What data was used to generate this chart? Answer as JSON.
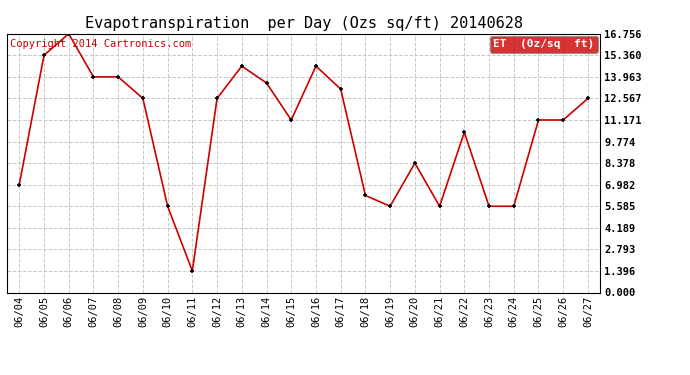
{
  "title": "Evapotranspiration  per Day (Ozs sq/ft) 20140628",
  "copyright": "Copyright 2014 Cartronics.com",
  "legend_label": "ET  (0z/sq  ft)",
  "dates": [
    "06/04",
    "06/05",
    "06/06",
    "06/07",
    "06/08",
    "06/09",
    "06/10",
    "06/11",
    "06/12",
    "06/13",
    "06/14",
    "06/15",
    "06/16",
    "06/17",
    "06/18",
    "06/19",
    "06/20",
    "06/21",
    "06/22",
    "06/23",
    "06/24",
    "06/25",
    "06/26",
    "06/27"
  ],
  "values": [
    6.982,
    15.36,
    16.756,
    13.963,
    13.963,
    12.567,
    5.585,
    1.396,
    12.567,
    14.662,
    13.567,
    11.171,
    14.662,
    13.171,
    6.285,
    5.585,
    8.378,
    5.585,
    10.374,
    5.585,
    5.585,
    11.171,
    11.171,
    12.567
  ],
  "ylim": [
    0.0,
    16.756
  ],
  "yticks": [
    0.0,
    1.396,
    2.793,
    4.189,
    5.585,
    6.982,
    8.378,
    9.774,
    11.171,
    12.567,
    13.963,
    15.36,
    16.756
  ],
  "line_color": "#cc0000",
  "marker_color": "#000000",
  "bg_color": "#ffffff",
  "grid_color": "#c8c8c8",
  "legend_bg": "#cc0000",
  "legend_text_color": "#ffffff",
  "title_fontsize": 11,
  "tick_fontsize": 7.5,
  "copyright_fontsize": 7.5
}
